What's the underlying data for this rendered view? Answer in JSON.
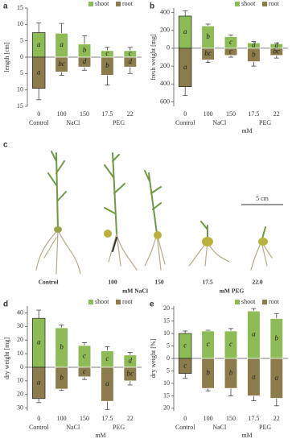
{
  "chart_data": [
    {
      "type": "bar",
      "panel": "a",
      "y_label": "length [cm]",
      "categories": [
        "0",
        "100",
        "150",
        "17.5",
        "22"
      ],
      "group_labels": [
        "Control",
        "NaCl",
        "PEG"
      ],
      "ylim": [
        -15,
        15
      ],
      "yticks": [
        15,
        10,
        5,
        0,
        {
          "value": -5,
          "label": "5"
        },
        {
          "value": -10,
          "label": "10"
        },
        {
          "value": -15,
          "label": "15"
        }
      ],
      "series": [
        {
          "name": "shoot",
          "color": "#8dbb55",
          "values": [
            7.5,
            7.3,
            4,
            2,
            2
          ],
          "errors": [
            3,
            3,
            2.5,
            1,
            1
          ],
          "letters": [
            "a",
            "a",
            "b",
            "c",
            "c"
          ]
        },
        {
          "name": "root",
          "color": "#8c7b4b",
          "values": [
            -9.5,
            -4.5,
            -3,
            -5.5,
            -3
          ],
          "errors": [
            3.5,
            1,
            1,
            3,
            2
          ],
          "letters": [
            "a",
            "bc",
            "d",
            "b",
            "d"
          ]
        }
      ]
    },
    {
      "type": "bar",
      "panel": "b",
      "y_label": "fresh weight [mg]",
      "x_label": "mM",
      "categories": [
        "0",
        "100",
        "150",
        "17.5",
        "22"
      ],
      "group_labels": [
        "Control",
        "NaCl",
        "PEG"
      ],
      "ylim": [
        -650,
        450
      ],
      "yticks": [
        400,
        200,
        0,
        {
          "value": -200,
          "label": "200"
        },
        {
          "value": -400,
          "label": "400"
        },
        {
          "value": -600,
          "label": "600"
        }
      ],
      "series": [
        {
          "name": "shoot",
          "color": "#8dbb55",
          "values": [
            360,
            250,
            130,
            60,
            50
          ],
          "errors": [
            60,
            20,
            20,
            15,
            10
          ],
          "letters": [
            "a",
            "b",
            "c",
            "d",
            "d"
          ]
        },
        {
          "name": "root",
          "color": "#8c7b4b",
          "values": [
            -430,
            -130,
            -80,
            -150,
            -80
          ],
          "errors": [
            100,
            30,
            20,
            50,
            30
          ],
          "letters": [
            "a",
            "bc",
            "c",
            "b",
            "bc"
          ]
        }
      ]
    },
    {
      "type": "bar",
      "panel": "d",
      "y_label": "dry weight [mg]",
      "x_label": "mM",
      "categories": [
        "0",
        "100",
        "150",
        "17.5",
        "22"
      ],
      "group_labels": [
        "Control",
        "NaCl",
        "PEG"
      ],
      "ylim": [
        -32,
        45
      ],
      "yticks": [
        40,
        30,
        20,
        10,
        0,
        {
          "value": -10,
          "label": "10"
        },
        {
          "value": -20,
          "label": "20"
        },
        {
          "value": -30,
          "label": "30"
        }
      ],
      "series": [
        {
          "name": "shoot",
          "color": "#8dbb55",
          "values": [
            36,
            29,
            16,
            12,
            9
          ],
          "errors": [
            6,
            2,
            2,
            3,
            2
          ],
          "letters": [
            "a",
            "b",
            "c",
            "c",
            "d"
          ]
        },
        {
          "name": "root",
          "color": "#8c7b4b",
          "values": [
            -23,
            -16,
            -7,
            -25,
            -10
          ],
          "errors": [
            3,
            1,
            2,
            6,
            3
          ],
          "letters": [
            "a",
            "b",
            "c",
            "a",
            "bc"
          ]
        }
      ]
    },
    {
      "type": "bar",
      "panel": "e",
      "y_label": "dry weight [%]",
      "x_label": "mM",
      "categories": [
        "0",
        "100",
        "150",
        "17.5",
        "22"
      ],
      "group_labels": [
        "Control",
        "NaCl",
        "PEG"
      ],
      "ylim": [
        -21,
        21
      ],
      "yticks": [
        20,
        15,
        10,
        5,
        0,
        {
          "value": -5,
          "label": "5"
        },
        {
          "value": -10,
          "label": "10"
        },
        {
          "value": -15,
          "label": "15"
        },
        {
          "value": -20,
          "label": "20"
        }
      ],
      "series": [
        {
          "name": "shoot",
          "color": "#8dbb55",
          "values": [
            10,
            11,
            11,
            19,
            16
          ],
          "errors": [
            1,
            0.3,
            1,
            1,
            2
          ],
          "letters": [
            "c",
            "c",
            "c",
            "a",
            "b"
          ]
        },
        {
          "name": "root",
          "color": "#8c7b4b",
          "values": [
            -6,
            -12,
            -12,
            -15,
            -16
          ],
          "errors": [
            2,
            1,
            3,
            2,
            3
          ],
          "letters": [
            "c",
            "b",
            "b",
            "a",
            "a"
          ]
        }
      ]
    }
  ],
  "photo": {
    "panel": "c",
    "scale": "5 cm",
    "labels": [
      "Control",
      "100",
      "150",
      "17.5",
      "22.0"
    ],
    "groups": [
      "mM NaCl",
      "mM PEG"
    ]
  }
}
